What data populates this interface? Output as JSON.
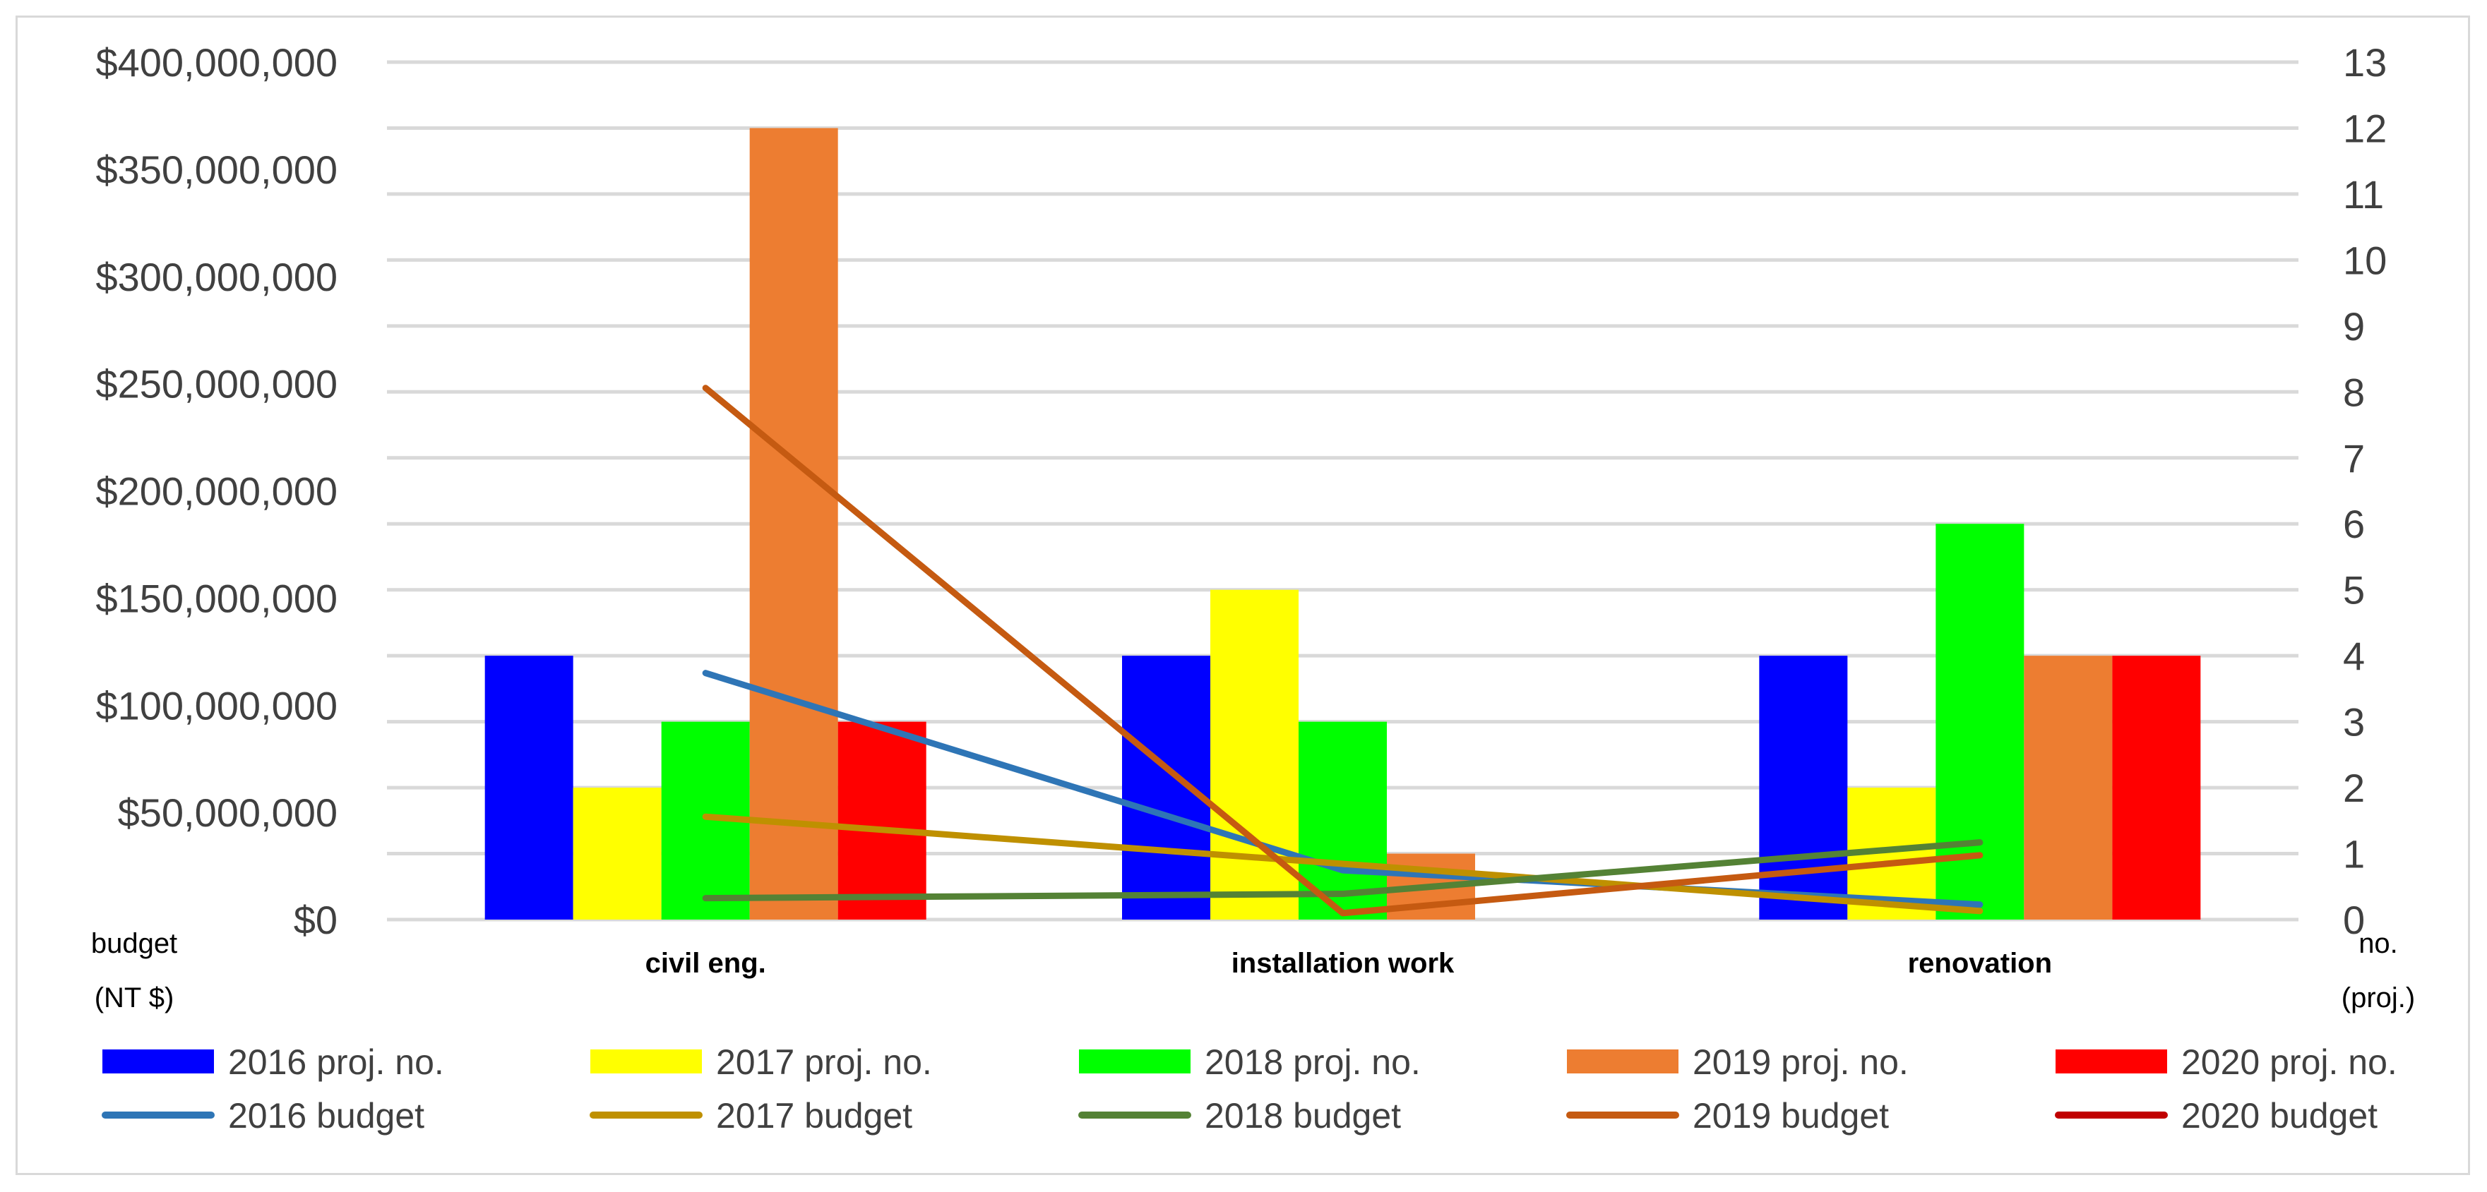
{
  "chart_data": {
    "type": "bar",
    "title": "",
    "categories": [
      "civil eng.",
      "installation work",
      "renovation"
    ],
    "y_left": {
      "label_lines": [
        "budget",
        "(NT $)"
      ],
      "min": 0,
      "max": 400000000,
      "step": 50000000,
      "tick_labels": [
        "$0",
        "$50,000,000",
        "$100,000,000",
        "$150,000,000",
        "$200,000,000",
        "$250,000,000",
        "$300,000,000",
        "$350,000,000",
        "$400,000,000"
      ]
    },
    "y_right": {
      "label_lines": [
        "no.",
        "(proj.)"
      ],
      "min": 0,
      "max": 13,
      "step": 1,
      "tick_labels": [
        "0",
        "1",
        "2",
        "3",
        "4",
        "5",
        "6",
        "7",
        "8",
        "9",
        "10",
        "11",
        "12",
        "13"
      ]
    },
    "grid": true,
    "legend_position": "bottom",
    "bar_series": [
      {
        "name": "2016 proj. no.",
        "color": "#0000FF",
        "values": [
          4,
          4,
          4
        ]
      },
      {
        "name": "2017 proj. no.",
        "color": "#FFFF00",
        "values": [
          2,
          5,
          2
        ]
      },
      {
        "name": "2018 proj. no.",
        "color": "#00FF00",
        "values": [
          3,
          3,
          6
        ]
      },
      {
        "name": "2019 proj. no.",
        "color": "#ED7D31",
        "values": [
          12,
          1,
          4
        ]
      },
      {
        "name": "2020 proj. no.",
        "color": "#FF0000",
        "values": [
          3,
          0,
          4
        ]
      }
    ],
    "line_series": [
      {
        "name": "2016 budget",
        "color": "#2E75B6",
        "values": [
          115000000,
          23000000,
          7000000
        ]
      },
      {
        "name": "2017 budget",
        "color": "#BF9000",
        "values": [
          48000000,
          26000000,
          4000000
        ]
      },
      {
        "name": "2018 budget",
        "color": "#548235",
        "values": [
          10000000,
          12000000,
          36000000
        ]
      },
      {
        "name": "2019 budget",
        "color": "#C55A11",
        "values": [
          248000000,
          3000000,
          30000000
        ]
      },
      {
        "name": "2020 budget",
        "color": "#C00000",
        "values": [
          null,
          null,
          null
        ]
      }
    ]
  }
}
